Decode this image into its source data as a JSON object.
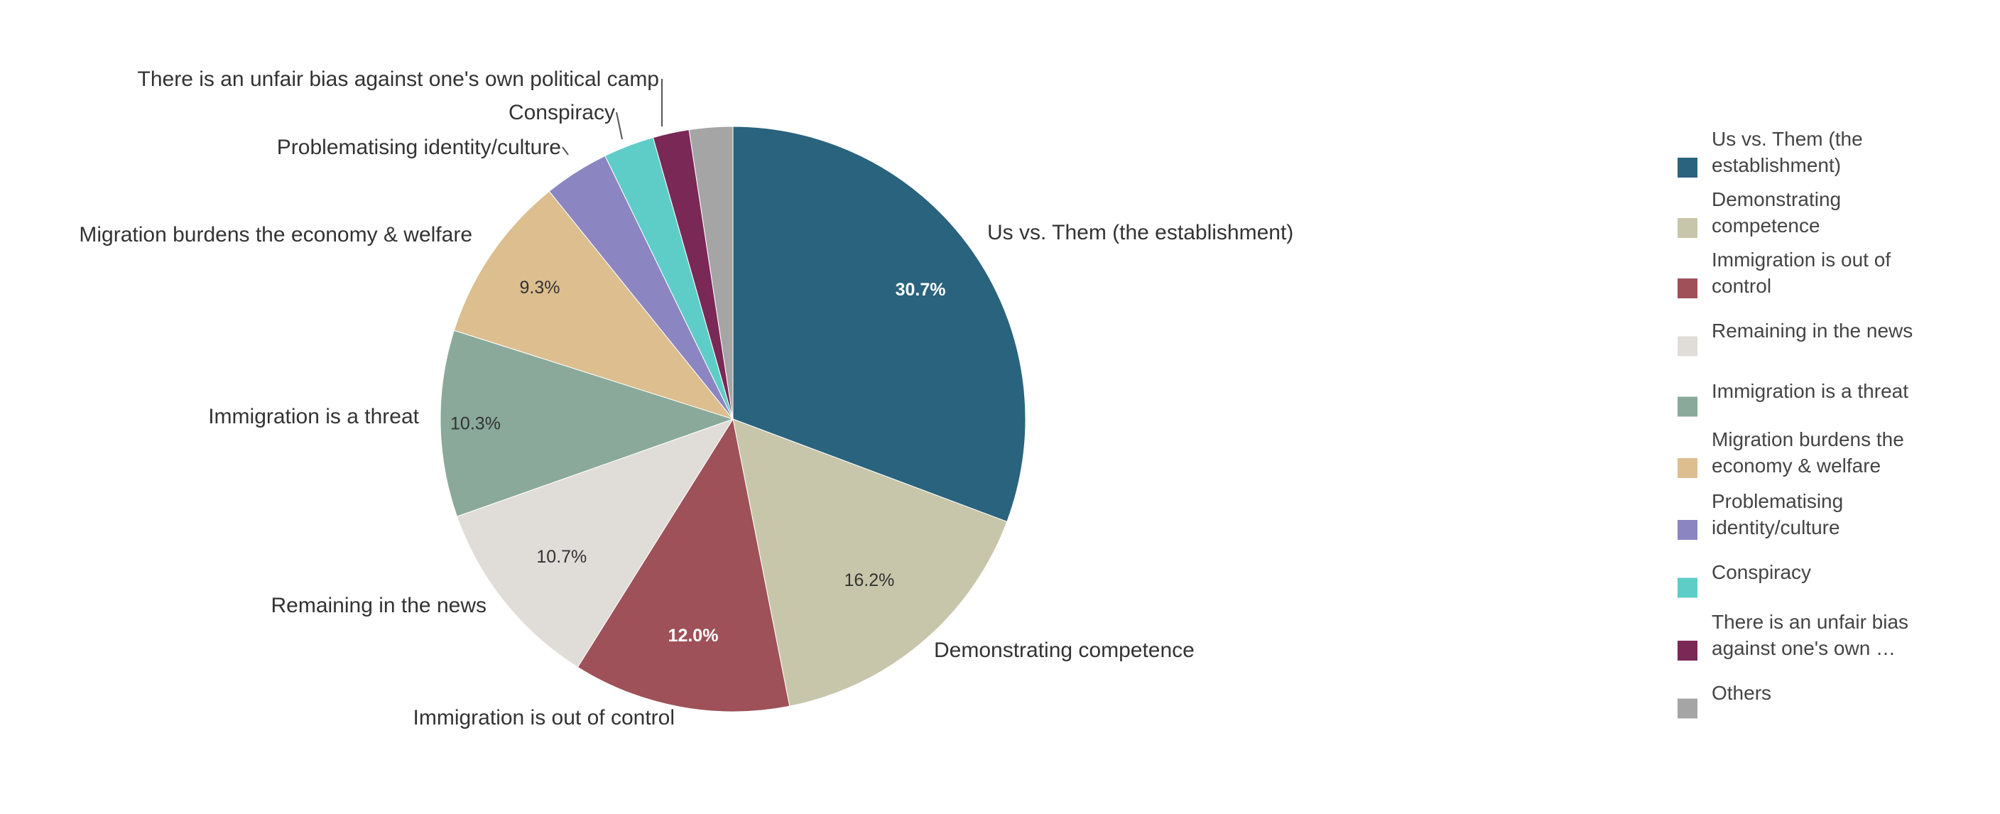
{
  "chart_data": {
    "type": "pie",
    "title": "",
    "legend_position": "right",
    "start_angle_deg": 0,
    "direction": "clockwise",
    "slices": [
      {
        "label": "Us vs. Them (the establishment)",
        "legend_label": "Us vs. Them (the establishment)",
        "value": 30.7,
        "display": "30.7%",
        "color": "#2a637e",
        "text_color": "#ffffff"
      },
      {
        "label": "Demonstrating competence",
        "legend_label": "Demonstrating competence",
        "value": 16.2,
        "display": "16.2%",
        "color": "#c8c6aa",
        "text_color": "#333333"
      },
      {
        "label": "Immigration is out of control",
        "legend_label": "Immigration is out of control",
        "value": 12.0,
        "display": "12.0%",
        "color": "#9e5158",
        "text_color": "#ffffff"
      },
      {
        "label": "Remaining in the news",
        "legend_label": "Remaining in the news",
        "value": 10.7,
        "display": "10.7%",
        "color": "#e0dcd8",
        "text_color": "#333333"
      },
      {
        "label": "Immigration is a threat",
        "legend_label": "Immigration is a threat",
        "value": 10.3,
        "display": "10.3%",
        "color": "#8aa99a",
        "text_color": "#333333"
      },
      {
        "label": "Migration burdens the economy & welfare",
        "legend_label": "Migration burdens the economy & welfare",
        "value": 9.3,
        "display": "9.3%",
        "color": "#dcbe8f",
        "text_color": "#333333"
      },
      {
        "label": "Problematising identity/culture",
        "legend_label": "Problematising identity/culture",
        "value": 3.6,
        "display": "",
        "color": "#8b85c1",
        "text_color": "#333333"
      },
      {
        "label": "Conspiracy",
        "legend_label": "Conspiracy",
        "value": 2.8,
        "display": "",
        "color": "#5ecdc7",
        "text_color": "#333333"
      },
      {
        "label": "There is an unfair bias against one's own political camp",
        "legend_label": "There is an unfair bias against one's own …",
        "value": 2.0,
        "display": "",
        "color": "#7a2856",
        "text_color": "#333333"
      },
      {
        "label": "",
        "legend_label": "Others",
        "value": 2.4,
        "display": "",
        "color": "#a5a5a5",
        "text_color": "#333333"
      }
    ]
  }
}
